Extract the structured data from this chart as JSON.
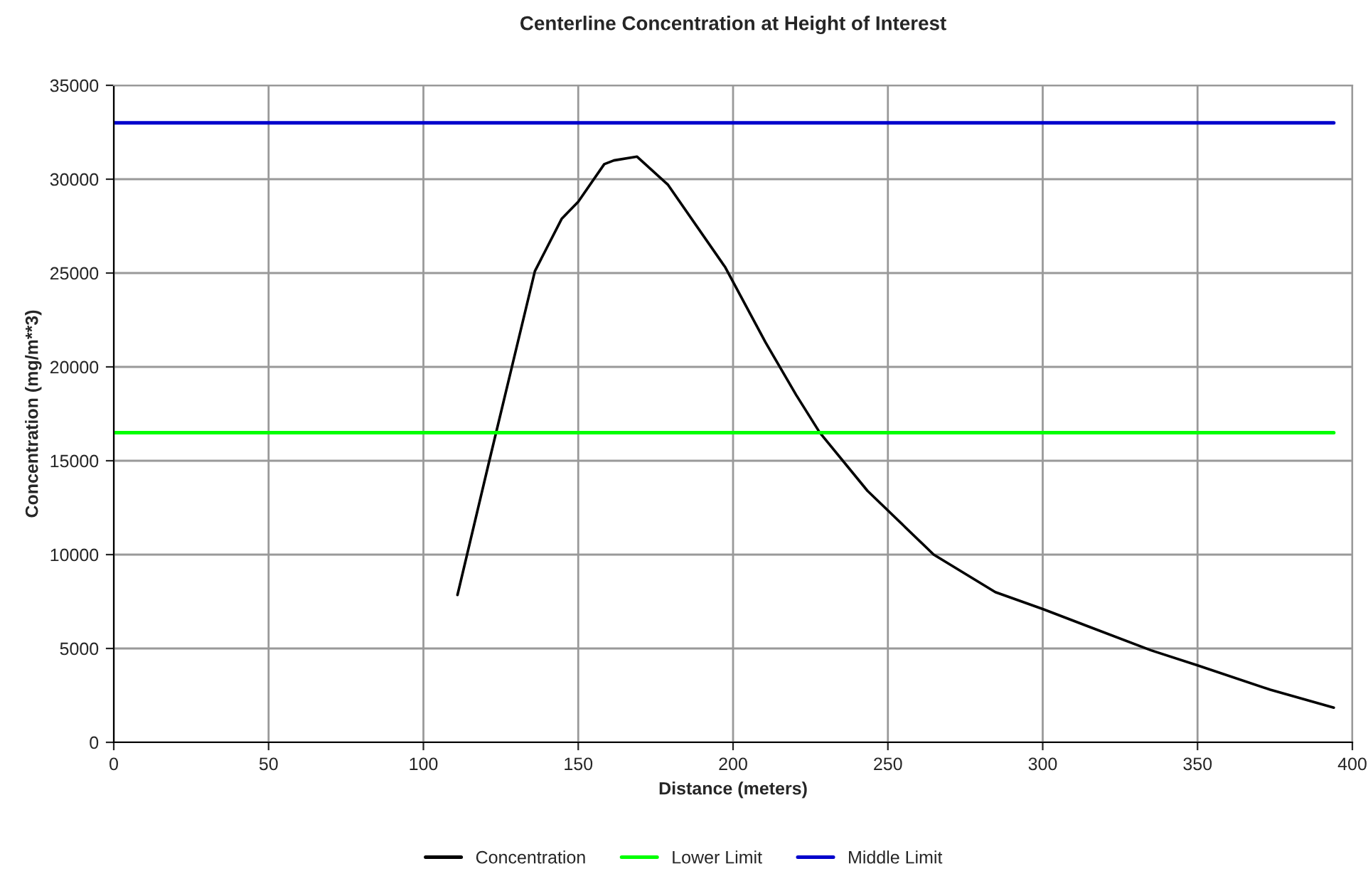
{
  "chart_data": {
    "type": "line",
    "title": "Centerline Concentration at Height of Interest",
    "xlabel": "Distance (meters)",
    "ylabel": "Concentration (mg/m**3)",
    "xlim": [
      0,
      400
    ],
    "xticks": [
      0,
      50,
      100,
      150,
      200,
      250,
      300,
      350,
      400
    ],
    "ylim": [
      0,
      35000
    ],
    "yticks": [
      0,
      5000,
      10000,
      15000,
      20000,
      25000,
      30000,
      35000
    ],
    "grid": true,
    "legend": "bottom",
    "marker": "none",
    "line_style": "solid",
    "series": [
      {
        "name": "Concentration",
        "color": "#000000",
        "x": [
          111,
          121,
          136,
          144.7,
          150,
          158.4,
          161.5,
          169,
          179,
          197.5,
          210.5,
          220.4,
          228,
          243.4,
          264.8,
          284.7,
          300,
          335,
          350,
          373.5,
          394
        ],
        "values": [
          7850,
          14800,
          25100,
          27900,
          28800,
          30800,
          31000,
          31200,
          29700,
          25300,
          21300,
          18500,
          16500,
          13400,
          10000,
          8000,
          7100,
          4900,
          4100,
          2800,
          1850
        ]
      },
      {
        "name": "Lower Limit",
        "color": "#00ff00",
        "x": [
          0,
          394
        ],
        "values": [
          16500,
          16500
        ]
      },
      {
        "name": "Middle Limit",
        "color": "#0000cc",
        "x": [
          0,
          394
        ],
        "values": [
          33000,
          33000
        ]
      }
    ]
  }
}
